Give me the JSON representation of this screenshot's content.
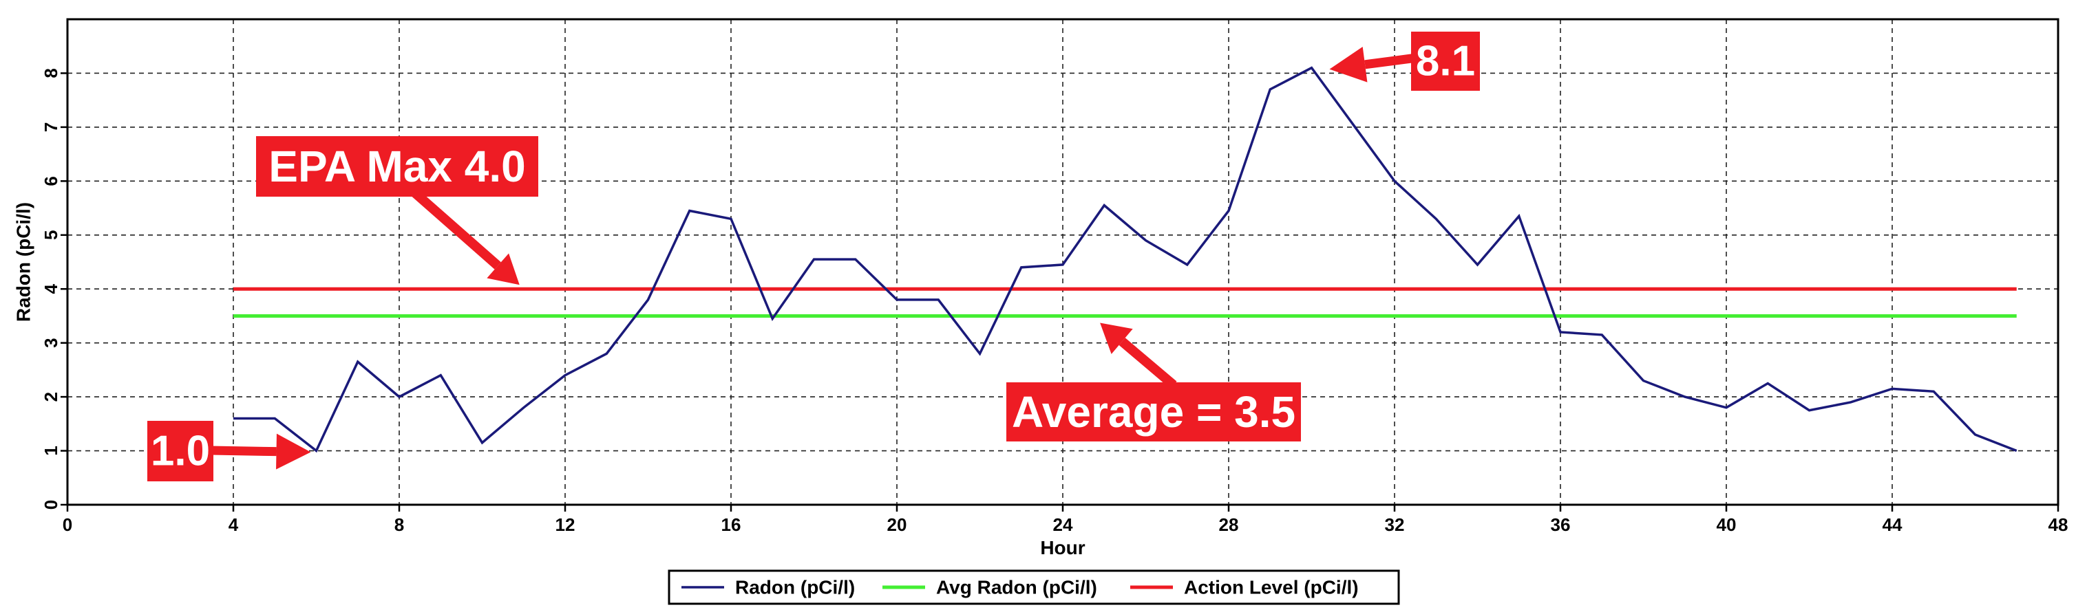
{
  "chart_data": {
    "type": "line",
    "xlabel": "Hour",
    "ylabel": "Radon (pCi/l)",
    "xlim": [
      0,
      48
    ],
    "ylim": [
      0,
      9
    ],
    "x_ticks": [
      0,
      4,
      8,
      12,
      16,
      20,
      24,
      28,
      32,
      36,
      40,
      44,
      48
    ],
    "y_ticks": [
      0,
      1,
      2,
      3,
      4,
      5,
      6,
      7,
      8
    ],
    "grid": true,
    "legend_position": "bottom-center",
    "series": [
      {
        "name": "Radon (pCi/l)",
        "color": "#1a1a7a",
        "x": [
          4,
          5,
          6,
          7,
          8,
          9,
          10,
          11,
          12,
          13,
          14,
          15,
          16,
          17,
          18,
          19,
          20,
          21,
          22,
          23,
          24,
          25,
          26,
          27,
          28,
          29,
          30,
          31,
          32,
          33,
          34,
          35,
          36,
          37,
          38,
          39,
          40,
          41,
          42,
          43,
          44,
          45,
          46,
          47
        ],
        "values": [
          1.6,
          1.6,
          1.0,
          2.65,
          2.0,
          2.4,
          1.15,
          1.8,
          2.4,
          2.8,
          3.8,
          5.45,
          5.3,
          3.45,
          4.55,
          4.55,
          3.8,
          3.8,
          2.8,
          4.4,
          4.45,
          5.55,
          4.9,
          4.45,
          5.45,
          7.7,
          8.1,
          7.05,
          6.0,
          5.3,
          4.45,
          5.35,
          3.2,
          3.15,
          2.3,
          2.0,
          1.8,
          2.25,
          1.75,
          1.9,
          2.15,
          2.1,
          1.3,
          1.0
        ]
      },
      {
        "name": "Avg Radon (pCi/l)",
        "color": "#44ee33",
        "x": [
          4,
          47
        ],
        "values": [
          3.5,
          3.5
        ]
      },
      {
        "name": "Action Level (pCi/l)",
        "color": "#ee1c24",
        "x": [
          4,
          47
        ],
        "values": [
          4.0,
          4.0
        ]
      }
    ],
    "annotations": [
      {
        "text": "EPA  Max 4.0",
        "x": 11,
        "y": 4.0
      },
      {
        "text": "Average = 3.5",
        "x": 24.5,
        "y": 3.5
      },
      {
        "text": "8.1",
        "x": 30,
        "y": 8.1
      },
      {
        "text": "1.0",
        "x": 6,
        "y": 1.0
      }
    ],
    "callout_color": "#ee1c24"
  }
}
